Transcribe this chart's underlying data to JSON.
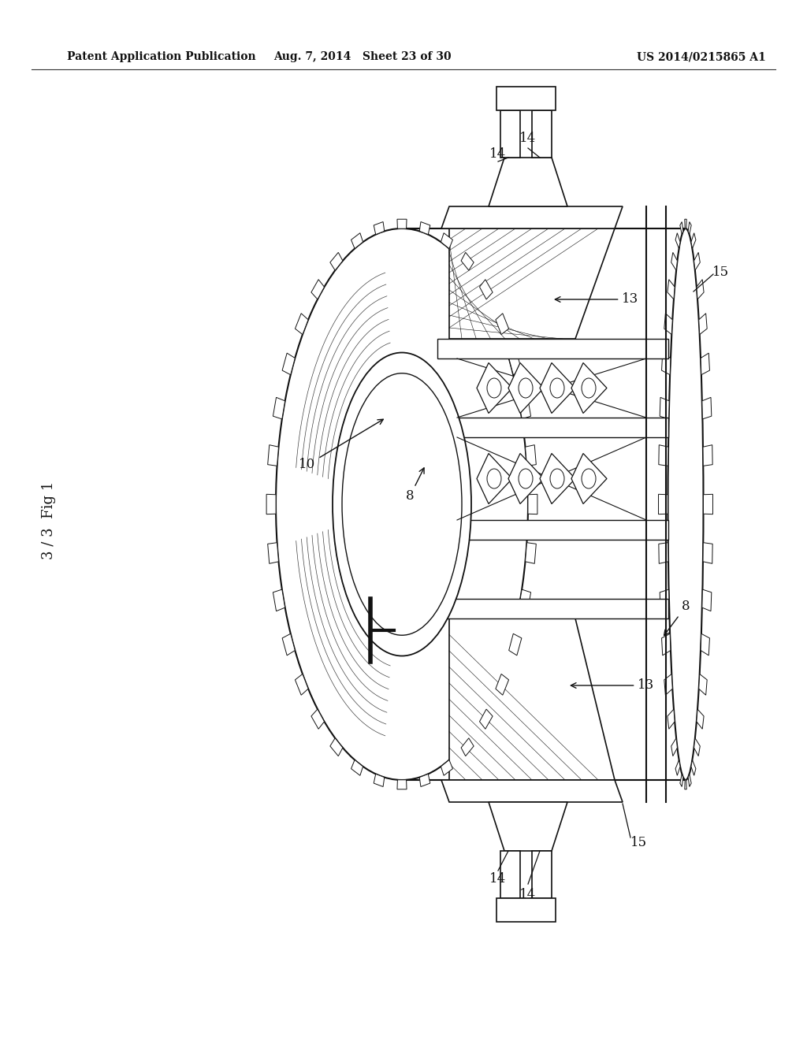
{
  "background_color": "#ffffff",
  "header_left": "Patent Application Publication",
  "header_center": "Aug. 7, 2014   Sheet 23 of 30",
  "header_right": "US 2014/0215865 A1",
  "header_fontsize": 10,
  "figure_label": "3 / 3  Fig 1",
  "line_color": "#1a1a1a",
  "dark": "#111111",
  "mid_gray": "#888888",
  "light_gray": "#cccccc"
}
